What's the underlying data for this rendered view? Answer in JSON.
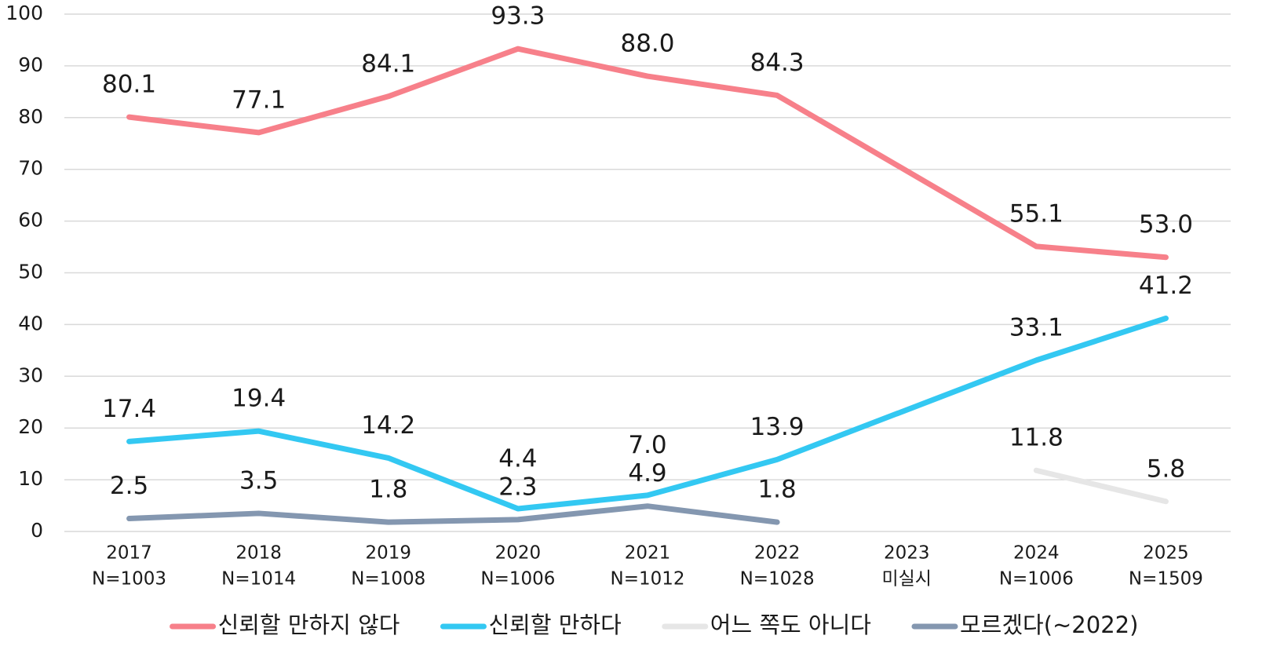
{
  "chart_data": {
    "type": "line",
    "categories": [
      [
        "2017",
        "N=1003"
      ],
      [
        "2018",
        "N=1014"
      ],
      [
        "2019",
        "N=1008"
      ],
      [
        "2020",
        "N=1006"
      ],
      [
        "2021",
        "N=1012"
      ],
      [
        "2022",
        "N=1028"
      ],
      [
        "2023",
        "미실시"
      ],
      [
        "2024",
        "N=1006"
      ],
      [
        "2025",
        "N=1509"
      ]
    ],
    "series": [
      {
        "name": "신뢰할 만하지 않다",
        "color": "#f7808a",
        "values": [
          80.1,
          77.1,
          84.1,
          93.3,
          88.0,
          84.3,
          null,
          55.1,
          53.0
        ],
        "value_labels": [
          "80.1",
          "77.1",
          "84.1",
          "93.3",
          "88.0",
          "84.3",
          null,
          "55.1",
          "53.0"
        ]
      },
      {
        "name": "신뢰할 만하다",
        "color": "#33c8f2",
        "values": [
          17.4,
          19.4,
          14.2,
          4.4,
          7.0,
          13.9,
          null,
          33.1,
          41.2
        ],
        "value_labels": [
          "17.4",
          "19.4",
          "14.2",
          "4.4",
          "7.0",
          "13.9",
          null,
          "33.1",
          "41.2"
        ]
      },
      {
        "name": "어느 쪽도 아니다",
        "color": "#e6e6e6",
        "values": [
          null,
          null,
          null,
          null,
          null,
          null,
          null,
          11.8,
          5.8
        ],
        "value_labels": [
          null,
          null,
          null,
          null,
          null,
          null,
          null,
          "11.8",
          "5.8"
        ]
      },
      {
        "name": "모르겠다(~2022)",
        "color": "#8497b0",
        "values": [
          2.5,
          3.5,
          1.8,
          2.3,
          4.9,
          1.8,
          null,
          null,
          null
        ],
        "value_labels": [
          "2.5",
          "3.5",
          "1.8",
          "2.3",
          "4.9",
          "1.8",
          null,
          null,
          null
        ]
      }
    ],
    "ylim": [
      0,
      100
    ],
    "yticks": [
      0,
      10,
      20,
      30,
      40,
      50,
      60,
      70,
      80,
      90,
      100
    ],
    "grid": true,
    "span_gaps": true,
    "legend": "bottom"
  }
}
